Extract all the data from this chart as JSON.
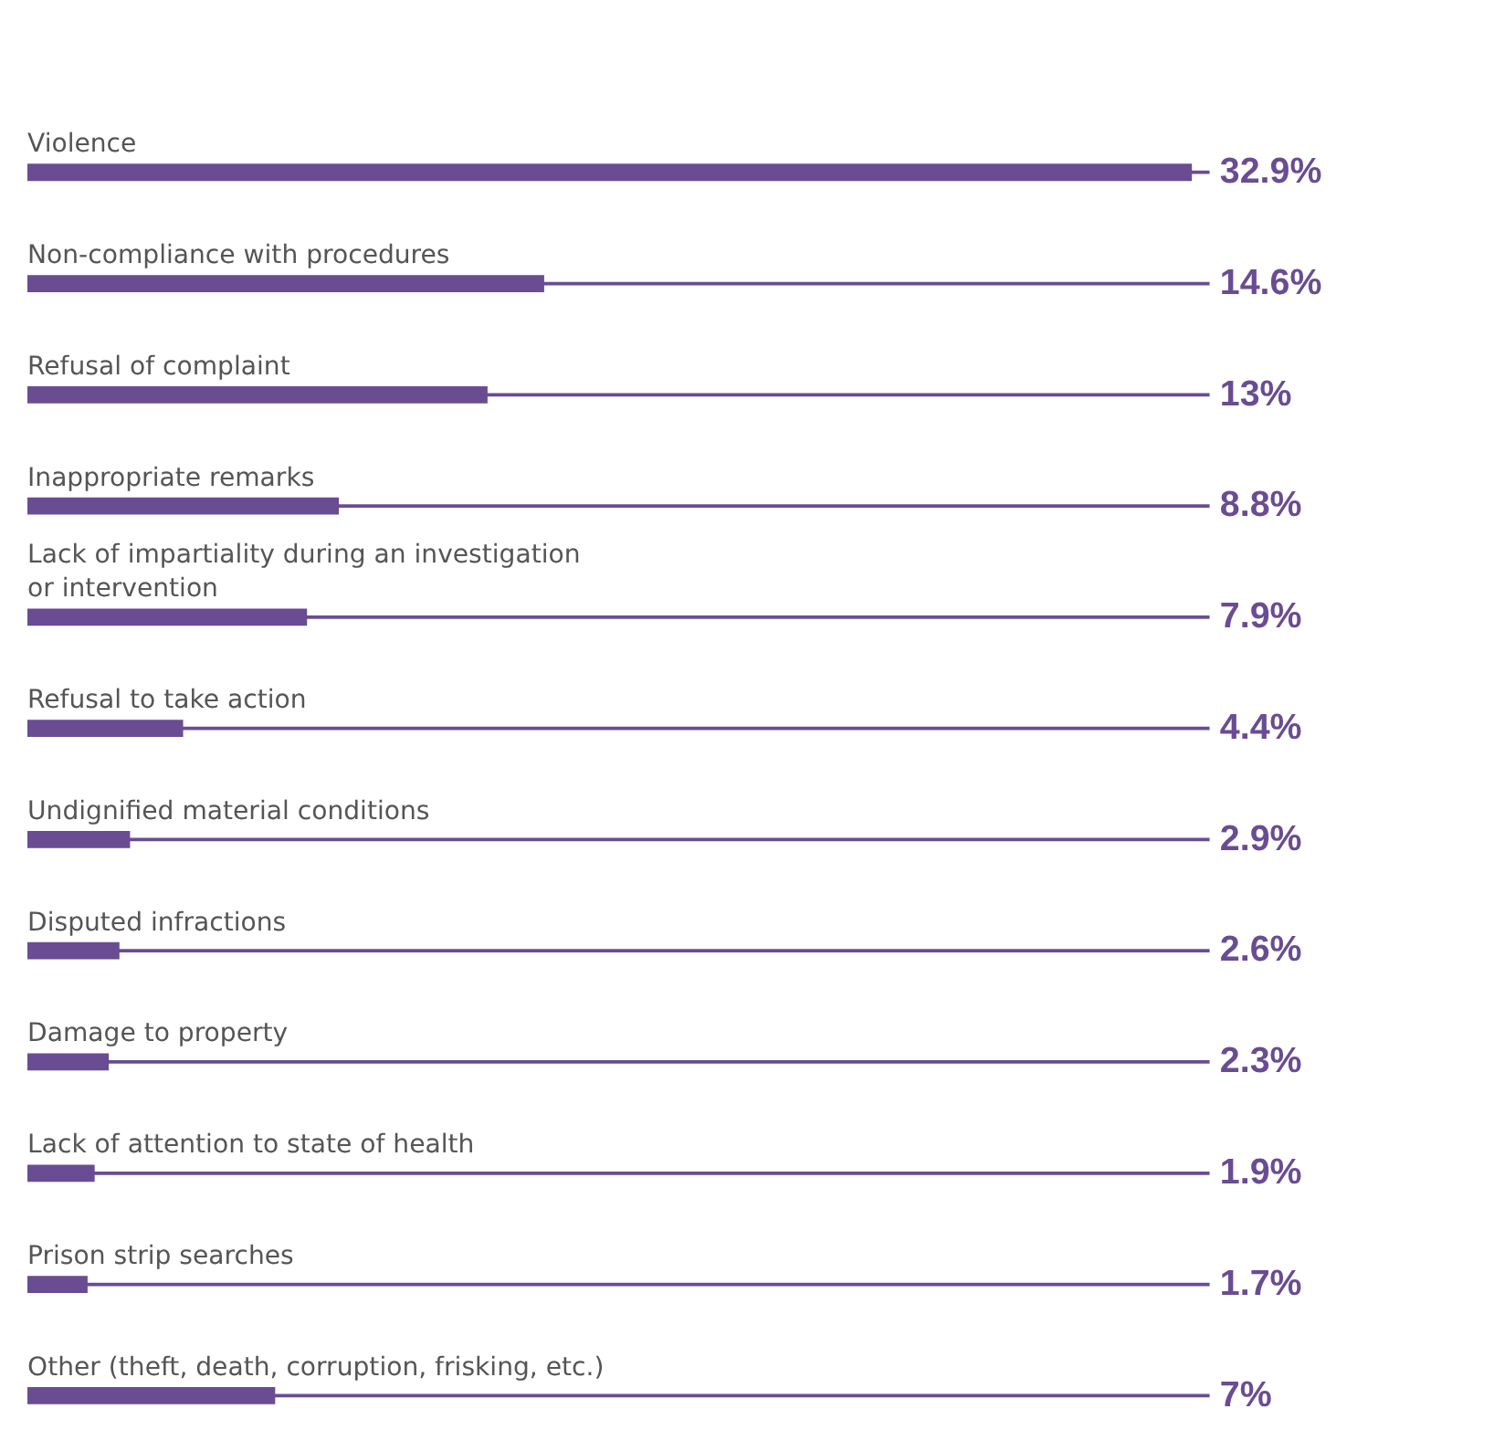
{
  "chart_data": {
    "type": "bar",
    "orientation": "horizontal",
    "categories": [
      "Violence",
      "Non-compliance with procedures",
      "Refusal of complaint",
      "Inappropriate remarks",
      "Lack of impartiality during an investigation\nor intervention",
      "Refusal to take action",
      "Undignified material conditions",
      "Disputed infractions",
      "Damage to property",
      "Lack of attention to state of health",
      "Prison strip searches",
      "Other (theft, death, corruption, frisking, etc.)"
    ],
    "values": [
      32.9,
      14.6,
      13,
      8.8,
      7.9,
      4.4,
      2.9,
      2.6,
      2.3,
      1.9,
      1.7,
      7
    ],
    "value_labels": [
      "32.9%",
      "14.6%",
      "13%",
      "8.8%",
      "7.9%",
      "4.4%",
      "2.9%",
      "2.6%",
      "2.3%",
      "1.9%",
      "1.7%",
      "7%"
    ],
    "color": "#6a4c93",
    "xlim": [
      0,
      33.4
    ]
  }
}
